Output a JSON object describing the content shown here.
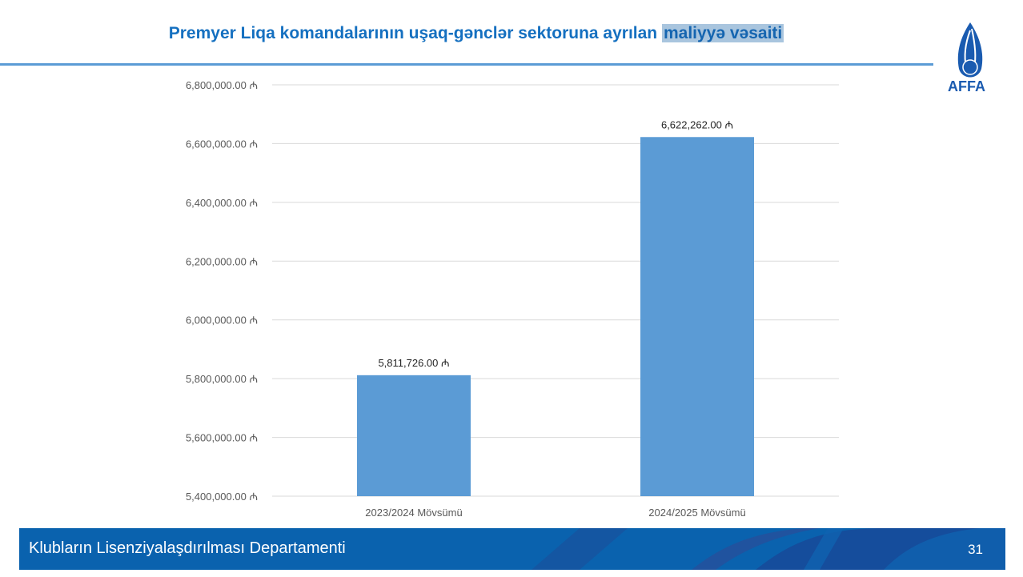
{
  "header": {
    "title_main": "Premyer Liqa komandalarının uşaq-gənclər sektoruna ayrılan ",
    "title_highlight": "maliyyə vəsaiti",
    "logo_text": "AFFA"
  },
  "colors": {
    "title": "#1570c0",
    "bar": "#5b9bd5",
    "highlight": "#a9c5de",
    "footer": "#0a62ae"
  },
  "chart_data": {
    "type": "bar",
    "categories": [
      "2023/2024 Mövsümü",
      "2024/2025 Mövsümü"
    ],
    "values": [
      5811726.0,
      6622262.0
    ],
    "data_labels": [
      "5,811,726.00 ₼",
      "6,622,262.00 ₼"
    ],
    "ylim": [
      5400000,
      6800000
    ],
    "yticks": [
      5400000,
      5600000,
      5800000,
      6000000,
      6200000,
      6400000,
      6600000,
      6800000
    ],
    "ytick_labels": [
      "5,400,000.00 ₼",
      "5,600,000.00 ₼",
      "5,800,000.00 ₼",
      "6,000,000.00 ₼",
      "6,200,000.00 ₼",
      "6,400,000.00 ₼",
      "6,600,000.00 ₼",
      "6,800,000.00 ₼"
    ],
    "grid": true,
    "legend": "none"
  },
  "footer": {
    "department": "Klubların Lisenziyalaşdırılması Departamenti",
    "page_number": "31"
  }
}
